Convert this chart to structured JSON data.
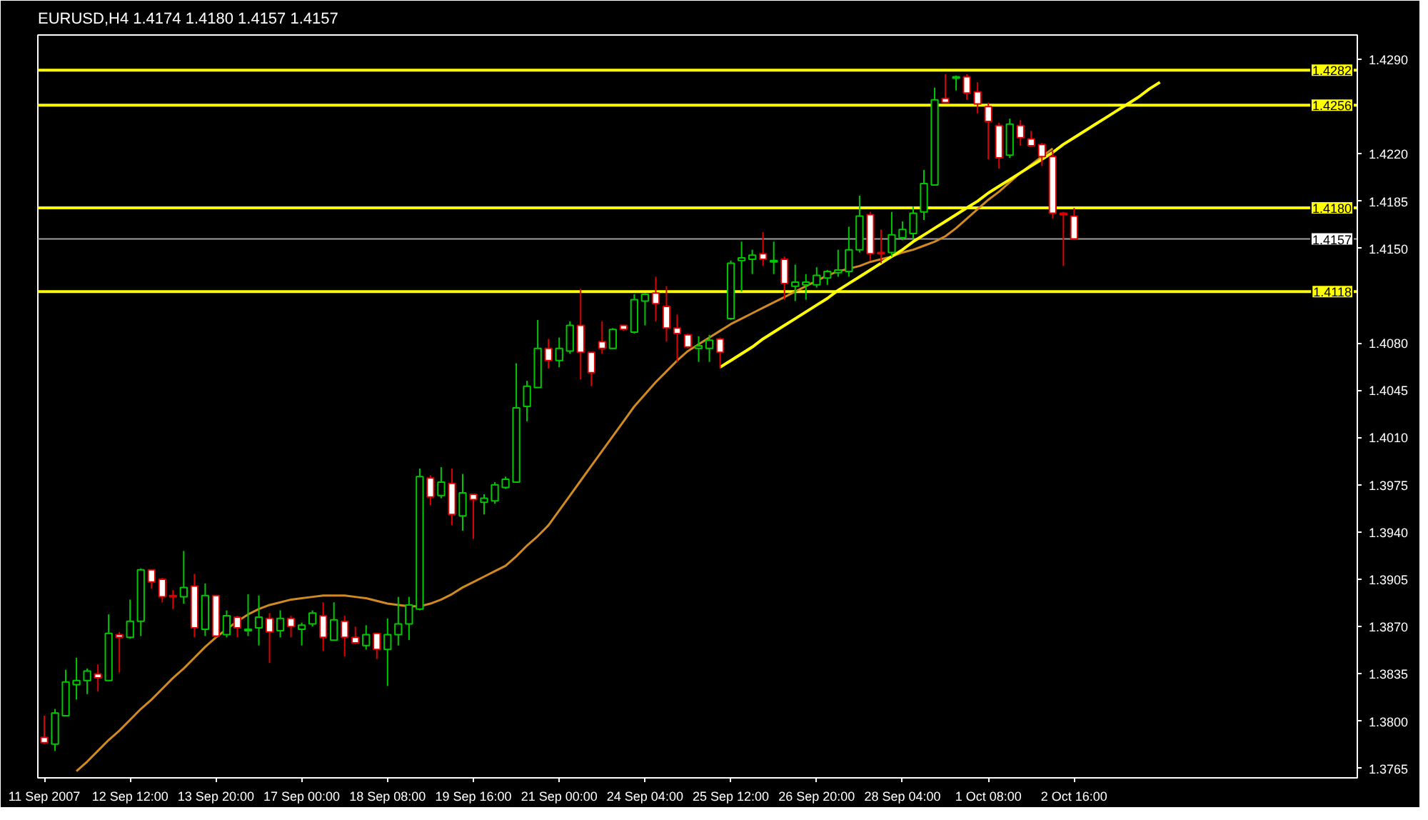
{
  "chart_data": {
    "type": "candlestick",
    "title": "EURUSD,H4  1.4174 1.4180 1.4157 1.4157",
    "categories": [
      "11 Sep 2007",
      null,
      null,
      null,
      null,
      null,
      null,
      null,
      "12 Sep 12:00",
      null,
      null,
      null,
      null,
      null,
      null,
      null,
      "13 Sep 20:00",
      null,
      null,
      null,
      null,
      null,
      null,
      null,
      "17 Sep 00:00",
      null,
      null,
      null,
      null,
      null,
      null,
      null,
      "18 Sep 08:00",
      null,
      null,
      null,
      null,
      null,
      null,
      null,
      "19 Sep 16:00",
      null,
      null,
      null,
      null,
      null,
      null,
      null,
      "21 Sep 00:00",
      null,
      null,
      null,
      null,
      null,
      null,
      null,
      "24 Sep 04:00",
      null,
      null,
      null,
      null,
      null,
      null,
      null,
      "25 Sep 12:00",
      null,
      null,
      null,
      null,
      null,
      null,
      null,
      "26 Sep 20:00",
      null,
      null,
      null,
      null,
      null,
      null,
      null,
      "28 Sep 04:00",
      null,
      null,
      null,
      null,
      null,
      null,
      null,
      "1 Oct 08:00",
      null,
      null,
      null,
      null,
      null,
      null,
      null,
      "2 Oct 16:00",
      null,
      null,
      null,
      null,
      null,
      null,
      null,
      null,
      null,
      null,
      null,
      null,
      null,
      null,
      null,
      null,
      null,
      null,
      null,
      null,
      null,
      null,
      null,
      null,
      null,
      null
    ],
    "ohlc": [
      [
        1.3788,
        1.3804,
        1.3783,
        1.3784
      ],
      [
        1.3783,
        1.3809,
        1.3778,
        1.3806
      ],
      [
        1.3804,
        1.3838,
        1.3804,
        1.3829
      ],
      [
        1.3827,
        1.3847,
        1.3816,
        1.383
      ],
      [
        1.383,
        1.3839,
        1.382,
        1.3837
      ],
      [
        1.3835,
        1.3842,
        1.3822,
        1.3832
      ],
      [
        1.383,
        1.3879,
        1.383,
        1.3865
      ],
      [
        1.3864,
        1.3866,
        1.3836,
        1.3862
      ],
      [
        1.3862,
        1.389,
        1.3861,
        1.3874
      ],
      [
        1.3874,
        1.3913,
        1.3863,
        1.3912
      ],
      [
        1.3912,
        1.3912,
        1.3898,
        1.3903
      ],
      [
        1.3905,
        1.3906,
        1.3888,
        1.3892
      ],
      [
        1.3893,
        1.3897,
        1.3883,
        1.3892
      ],
      [
        1.3892,
        1.3926,
        1.3887,
        1.3899
      ],
      [
        1.39,
        1.3909,
        1.3862,
        1.3869
      ],
      [
        1.3868,
        1.3902,
        1.3863,
        1.3893
      ],
      [
        1.3893,
        1.3893,
        1.3862,
        1.3863
      ],
      [
        1.3864,
        1.3882,
        1.3862,
        1.3878
      ],
      [
        1.3877,
        1.3878,
        1.3862,
        1.3869
      ],
      [
        1.3867,
        1.3894,
        1.3863,
        1.3868
      ],
      [
        1.3869,
        1.3893,
        1.3856,
        1.3877
      ],
      [
        1.3876,
        1.388,
        1.3843,
        1.3866
      ],
      [
        1.3867,
        1.3882,
        1.3862,
        1.3876
      ],
      [
        1.3876,
        1.3878,
        1.3862,
        1.387
      ],
      [
        1.3868,
        1.3873,
        1.3856,
        1.3871
      ],
      [
        1.3872,
        1.3882,
        1.387,
        1.388
      ],
      [
        1.3878,
        1.3888,
        1.3852,
        1.3862
      ],
      [
        1.386,
        1.3888,
        1.386,
        1.3875
      ],
      [
        1.3874,
        1.3878,
        1.3848,
        1.3862
      ],
      [
        1.3862,
        1.387,
        1.3857,
        1.3858
      ],
      [
        1.3856,
        1.3871,
        1.3853,
        1.3864
      ],
      [
        1.3865,
        1.3865,
        1.3846,
        1.3853
      ],
      [
        1.3853,
        1.3876,
        1.3826,
        1.3864
      ],
      [
        1.3864,
        1.3892,
        1.3856,
        1.3872
      ],
      [
        1.3872,
        1.3892,
        1.386,
        1.3886
      ],
      [
        1.3883,
        1.3987,
        1.3882,
        1.3981
      ],
      [
        1.398,
        1.3982,
        1.396,
        1.3966
      ],
      [
        1.3967,
        1.3988,
        1.3965,
        1.3977
      ],
      [
        1.3976,
        1.3987,
        1.3945,
        1.3953
      ],
      [
        1.3952,
        1.3983,
        1.3941,
        1.3969
      ],
      [
        1.3968,
        1.3968,
        1.3935,
        1.3964
      ],
      [
        1.3962,
        1.3968,
        1.3953,
        1.3965
      ],
      [
        1.3963,
        1.3977,
        1.3961,
        1.3975
      ],
      [
        1.3973,
        1.3981,
        1.3972,
        1.3979
      ],
      [
        1.3977,
        1.4065,
        1.3977,
        1.4032
      ],
      [
        1.4033,
        1.4052,
        1.4022,
        1.4048
      ],
      [
        1.4047,
        1.4097,
        1.4047,
        1.4076
      ],
      [
        1.4076,
        1.4083,
        1.4061,
        1.4067
      ],
      [
        1.4067,
        1.4084,
        1.4062,
        1.4076
      ],
      [
        1.4074,
        1.4096,
        1.4072,
        1.4093
      ],
      [
        1.4093,
        1.412,
        1.4053,
        1.4073
      ],
      [
        1.4073,
        1.4073,
        1.4048,
        1.4058
      ],
      [
        1.4081,
        1.4096,
        1.4072,
        1.4076
      ],
      [
        1.4076,
        1.4091,
        1.4076,
        1.409
      ],
      [
        1.4093,
        1.4093,
        1.4089,
        1.409
      ],
      [
        1.4088,
        1.4116,
        1.4087,
        1.4112
      ],
      [
        1.4111,
        1.4117,
        1.4093,
        1.4116
      ],
      [
        1.4117,
        1.4129,
        1.4096,
        1.4109
      ],
      [
        1.4107,
        1.4122,
        1.4081,
        1.4091
      ],
      [
        1.4091,
        1.4101,
        1.4066,
        1.4087
      ],
      [
        1.4086,
        1.4087,
        1.4076,
        1.4077
      ],
      [
        1.4076,
        1.4085,
        1.4066,
        1.4078
      ],
      [
        1.4076,
        1.4086,
        1.4066,
        1.4082
      ],
      [
        1.4083,
        1.4084,
        1.4061,
        1.4073
      ],
      [
        1.4098,
        1.4141,
        1.4097,
        1.4139
      ],
      [
        1.4141,
        1.4155,
        1.4118,
        1.4143
      ],
      [
        1.4142,
        1.4149,
        1.4131,
        1.4145
      ],
      [
        1.4146,
        1.4162,
        1.4137,
        1.4142
      ],
      [
        1.414,
        1.4155,
        1.4131,
        1.4141
      ],
      [
        1.4142,
        1.4144,
        1.4112,
        1.4124
      ],
      [
        1.4122,
        1.4138,
        1.4111,
        1.4125
      ],
      [
        1.4123,
        1.4131,
        1.4112,
        1.4125
      ],
      [
        1.4123,
        1.4136,
        1.4121,
        1.413
      ],
      [
        1.4128,
        1.4134,
        1.4123,
        1.4133
      ],
      [
        1.4132,
        1.4149,
        1.4129,
        1.4134
      ],
      [
        1.4133,
        1.4166,
        1.4129,
        1.4149
      ],
      [
        1.4149,
        1.4189,
        1.4147,
        1.4174
      ],
      [
        1.4175,
        1.4177,
        1.4141,
        1.4146
      ],
      [
        1.4147,
        1.4164,
        1.4139,
        1.4146
      ],
      [
        1.4147,
        1.4177,
        1.4144,
        1.416
      ],
      [
        1.4158,
        1.417,
        1.4156,
        1.4164
      ],
      [
        1.4161,
        1.4181,
        1.4157,
        1.4176
      ],
      [
        1.4177,
        1.4208,
        1.4171,
        1.4198
      ],
      [
        1.4197,
        1.4269,
        1.4197,
        1.426
      ],
      [
        1.4261,
        1.4279,
        1.4258,
        1.4258
      ],
      [
        1.4276,
        1.4278,
        1.4267,
        1.4277
      ],
      [
        1.4277,
        1.4279,
        1.426,
        1.4265
      ],
      [
        1.4266,
        1.4273,
        1.425,
        1.4257
      ],
      [
        1.4255,
        1.4258,
        1.4216,
        1.4244
      ],
      [
        1.4241,
        1.4243,
        1.4209,
        1.4217
      ],
      [
        1.4219,
        1.4246,
        1.4217,
        1.4242
      ],
      [
        1.4241,
        1.4245,
        1.4226,
        1.4232
      ],
      [
        1.4231,
        1.4237,
        1.4226,
        1.4226
      ],
      [
        1.4227,
        1.4228,
        1.4211,
        1.4218
      ],
      [
        1.4218,
        1.4222,
        1.4172,
        1.4176
      ],
      [
        1.4176,
        1.4177,
        1.4137,
        1.4175
      ],
      [
        1.4174,
        1.418,
        1.4157,
        1.4157
      ],
      null,
      null,
      null,
      null,
      null,
      null,
      null,
      null,
      null,
      null,
      null,
      null,
      null,
      null,
      null,
      null,
      null,
      null,
      null,
      null,
      null,
      null,
      null,
      null,
      null,
      null
    ],
    "colors": [
      "#dc0000",
      "#00c800",
      "#00c800",
      "#00c800",
      "#00c800",
      "#dc0000",
      "#00c800",
      "#dc0000",
      "#00c800",
      "#00c800",
      "#dc0000",
      "#dc0000",
      "#dc0000",
      "#00c800",
      "#dc0000",
      "#00c800",
      "#dc0000",
      "#00c800",
      "#dc0000",
      "#00c800",
      "#00c800",
      "#dc0000",
      "#00c800",
      "#dc0000",
      "#00c800",
      "#00c800",
      "#dc0000",
      "#00c800",
      "#dc0000",
      "#dc0000",
      "#00c800",
      "#dc0000",
      "#00c800",
      "#00c800",
      "#00c800",
      "#00c800",
      "#dc0000",
      "#00c800",
      "#dc0000",
      "#00c800",
      "#dc0000",
      "#00c800",
      "#00c800",
      "#00c800",
      "#00c800",
      "#00c800",
      "#00c800",
      "#dc0000",
      "#00c800",
      "#00c800",
      "#dc0000",
      "#dc0000",
      "#dc0000",
      "#00c800",
      "#dc0000",
      "#00c800",
      "#00c800",
      "#dc0000",
      "#dc0000",
      "#dc0000",
      "#dc0000",
      "#00c800",
      "#00c800",
      "#dc0000",
      "#00c800",
      "#00c800",
      "#00c800",
      "#dc0000",
      "#00c800",
      "#dc0000",
      "#00c800",
      "#00c800",
      "#00c800",
      "#00c800",
      "#00c800",
      "#00c800",
      "#00c800",
      "#dc0000",
      "#dc0000",
      "#00c800",
      "#00c800",
      "#00c800",
      "#00c800",
      "#00c800",
      "#dc0000",
      "#00c800",
      "#dc0000",
      "#dc0000",
      "#dc0000",
      "#dc0000",
      "#00c800",
      "#dc0000",
      "#dc0000",
      "#dc0000",
      "#dc0000",
      "#dc0000",
      "#dc0000",
      null,
      null,
      null,
      null,
      null,
      null,
      null,
      null,
      null,
      null,
      null,
      null,
      null,
      null,
      null,
      null,
      null,
      null,
      null,
      null,
      null,
      null,
      null,
      null,
      null,
      null
    ],
    "series": [
      {
        "type": "line",
        "color": "#d08a20",
        "values": [
          null,
          null,
          null,
          1.3763,
          1.377,
          1.3778,
          1.3786,
          1.3793,
          1.3801,
          1.3809,
          1.3816,
          1.3824,
          1.3832,
          1.3839,
          1.3847,
          1.3855,
          1.3862,
          1.3868,
          1.3874,
          1.3879,
          1.3883,
          1.3886,
          1.3888,
          1.389,
          1.3891,
          1.3892,
          1.3893,
          1.3893,
          1.3893,
          1.3892,
          1.3891,
          1.3889,
          1.3887,
          1.3886,
          1.3885,
          1.3885,
          1.3887,
          1.389,
          1.3894,
          1.3899,
          1.3903,
          1.3907,
          1.3911,
          1.3915,
          1.3922,
          1.393,
          1.3937,
          1.3945,
          1.3956,
          1.3967,
          1.3978,
          1.3989,
          1.4,
          1.4011,
          1.4022,
          1.4033,
          1.4042,
          1.4051,
          1.4059,
          1.4067,
          1.4074,
          1.4079,
          1.4084,
          1.4089,
          1.4094,
          1.4098,
          1.4102,
          1.4106,
          1.411,
          1.4114,
          1.4118,
          1.4122,
          1.4126,
          1.413,
          1.4133,
          1.4135,
          1.4137,
          1.414,
          1.4142,
          1.4144,
          1.4147,
          1.4149,
          1.4152,
          1.4155,
          1.4159,
          1.4165,
          1.4172,
          1.4179,
          1.4186,
          1.4192,
          1.4199,
          1.4206,
          1.4212,
          1.4218,
          1.4224,
          null,
          null,
          null,
          null,
          null,
          null,
          null,
          null,
          null,
          null,
          null,
          null,
          null,
          null,
          null,
          null,
          null,
          null,
          null,
          null,
          null,
          null,
          null,
          null,
          null,
          null,
          null,
          null
        ]
      },
      {
        "type": "line",
        "color": "#ffff00",
        "values": [
          null,
          null,
          null,
          null,
          null,
          null,
          null,
          null,
          null,
          null,
          null,
          null,
          null,
          null,
          null,
          null,
          null,
          null,
          null,
          null,
          null,
          null,
          null,
          null,
          null,
          null,
          null,
          null,
          null,
          null,
          null,
          null,
          null,
          null,
          null,
          null,
          null,
          null,
          null,
          null,
          null,
          null,
          null,
          null,
          null,
          null,
          null,
          null,
          null,
          null,
          null,
          null,
          null,
          null,
          null,
          null,
          null,
          null,
          null,
          null,
          null,
          null,
          null,
          1.4062,
          1.4067,
          1.4072,
          1.4077,
          1.4083,
          1.4088,
          1.4093,
          1.4098,
          1.4103,
          1.4108,
          1.4113,
          1.4119,
          1.4124,
          1.4129,
          1.4134,
          1.4139,
          1.4144,
          1.4149,
          1.4155,
          1.416,
          1.4165,
          1.417,
          1.4175,
          1.418,
          1.4185,
          1.4191,
          1.4196,
          1.4201,
          1.4206,
          1.4211,
          1.4216,
          1.4221,
          1.4227,
          1.4232,
          1.4237,
          1.4242,
          1.4247,
          1.4252,
          1.4257,
          1.4262,
          1.4268,
          1.4273,
          null,
          null,
          null,
          null,
          null,
          null,
          null,
          null,
          null,
          null,
          null,
          null,
          null,
          null,
          null,
          null,
          null,
          null
        ]
      }
    ],
    "ylim": [
      1.3758,
      1.4308
    ],
    "yticks": [
      {
        "value": 1.429,
        "label": "1.4290"
      },
      {
        "value": 1.422,
        "label": "1.4220"
      },
      {
        "value": 1.4185,
        "label": "1.4185"
      },
      {
        "value": 1.415,
        "label": "1.4150"
      },
      {
        "value": 1.408,
        "label": "1.4080"
      },
      {
        "value": 1.4045,
        "label": "1.4045"
      },
      {
        "value": 1.401,
        "label": "1.4010"
      },
      {
        "value": 1.3975,
        "label": "1.3975"
      },
      {
        "value": 1.394,
        "label": "1.3940"
      },
      {
        "value": 1.3905,
        "label": "1.3905"
      },
      {
        "value": 1.387,
        "label": "1.3870"
      },
      {
        "value": 1.3835,
        "label": "1.3835"
      },
      {
        "value": 1.38,
        "label": "1.3800"
      },
      {
        "value": 1.3765,
        "label": "1.3765"
      }
    ],
    "ref_lines": [
      {
        "axis": "y",
        "value": 1.4282,
        "label": "1.4282",
        "color": "#ffff00"
      },
      {
        "axis": "y",
        "value": 1.4256,
        "label": "1.4256",
        "color": "#ffff00"
      },
      {
        "axis": "y",
        "value": 1.418,
        "label": "1.4180",
        "color": "#ffff00"
      },
      {
        "axis": "y",
        "value": 1.4157,
        "label": "1.4157",
        "color": "#a0a0a0"
      },
      {
        "axis": "y",
        "value": 1.4118,
        "label": "1.4118",
        "color": "#ffff00"
      }
    ]
  }
}
